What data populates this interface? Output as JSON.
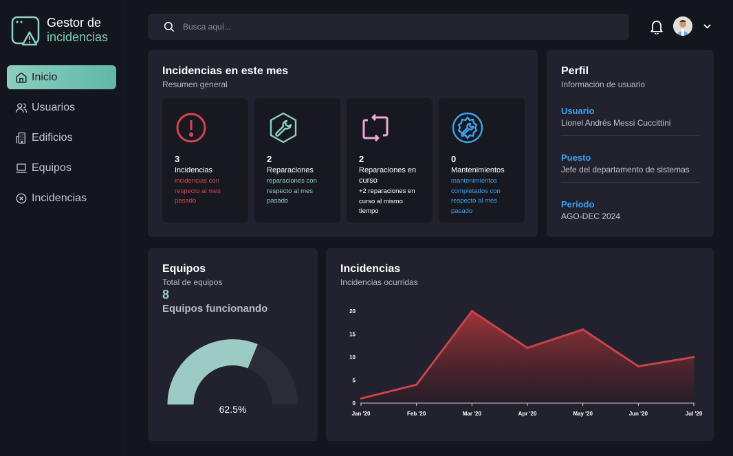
{
  "app": {
    "title_line1": "Gestor de",
    "title_line2": "incidencias"
  },
  "nav": [
    {
      "label": "Inicio",
      "icon": "home-icon",
      "active": true
    },
    {
      "label": "Usuarios",
      "icon": "users-icon"
    },
    {
      "label": "Edificios",
      "icon": "building-icon"
    },
    {
      "label": "Equipos",
      "icon": "laptop-icon"
    },
    {
      "label": "Incidencias",
      "icon": "circle-x-icon"
    }
  ],
  "search": {
    "placeholder": "Busca aquí..."
  },
  "month": {
    "title": "Incidencias en este mes",
    "subtitle": "Resumen general",
    "tiles": [
      {
        "icon": "alert-circle-icon",
        "num": "3",
        "label": "Incidencias",
        "note": "incidencias con respecto al mes pasado",
        "color": "#d6454d"
      },
      {
        "icon": "wrench-hex-icon",
        "num": "2",
        "label": "Reparaciones",
        "note": "reparaciones con respecto al mes pasado",
        "color": "#8fd1c2"
      },
      {
        "icon": "refresh-square-icon",
        "num": "2",
        "label": "Reparaciones en curso",
        "note": "+2 reparaciones en curso al mismo tiempo",
        "color": "#f1a8d8"
      },
      {
        "icon": "gear-wrench-icon",
        "num": "0",
        "label": "Mantenimientos",
        "note": "mantenimientos completados con respecto al mes pasado",
        "color": "#3ba2f0"
      }
    ]
  },
  "profile": {
    "title": "Perfil",
    "subtitle": "Información de usuario",
    "fields": [
      {
        "key": "Usuario",
        "value": "Lionel Andrés Messi Cuccittini"
      },
      {
        "key": "Puesto",
        "value": "Jefe del departamento de sistemas"
      },
      {
        "key": "Periodo",
        "value": "AGO-DEC 2024"
      }
    ]
  },
  "equipos": {
    "title": "Equipos",
    "subtitle": "Total de equipos",
    "count": "8",
    "status_label": "Equipos funcionando",
    "percent_label": "62.5%",
    "percent": 62.5,
    "colors": {
      "fill": "#9ccbc4",
      "track": "#2b2c37"
    }
  },
  "incidencias": {
    "title": "Incidencias",
    "subtitle": "Incidencias ocurridas"
  },
  "chart_data": {
    "type": "area",
    "categories": [
      "Jan '20",
      "Feb '20",
      "Mar '20",
      "Apr '20",
      "May '20",
      "Jun '20",
      "Jul '20"
    ],
    "series": [
      {
        "values": [
          1,
          4,
          20,
          12,
          16,
          8,
          10
        ]
      }
    ],
    "ylim": [
      0,
      20
    ],
    "yticks": [
      0,
      5,
      10,
      15,
      20
    ],
    "color": "#c8434a",
    "grid": false
  }
}
